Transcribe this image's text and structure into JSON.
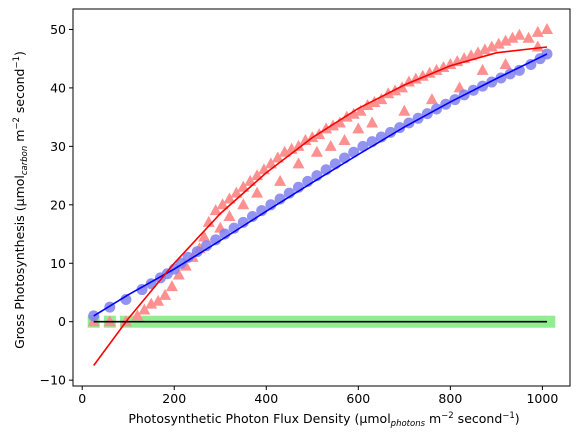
{
  "chart_data": {
    "type": "scatter",
    "title": "",
    "xlabel": {
      "main": "Photosynthetic Photon Flux Density (μmol",
      "sub": "photons",
      "middle": " m",
      "sup1": "−2",
      "rest": " second",
      "sup2": "−1",
      "end": ")"
    },
    "ylabel": {
      "main": "Gross Photosynthesis (μmol",
      "sub": "carbon",
      "middle": " m",
      "sup1": "−2",
      "rest": " second",
      "sup2": "−1",
      "end": ")"
    },
    "xlim": [
      -20,
      1060
    ],
    "ylim": [
      -11,
      53.5
    ],
    "xticks": [
      0,
      200,
      400,
      600,
      800,
      1000
    ],
    "yticks": [
      -10,
      0,
      10,
      20,
      30,
      40,
      50
    ],
    "grid": false,
    "legend": "none",
    "colors": {
      "circles": "#8080f0",
      "triangles": "#ff9090",
      "squares": "#90ee90",
      "blue_fit": "#0000ff",
      "red_fit": "#ff0000",
      "black_fit": "#000000"
    },
    "series": [
      {
        "name": "circles",
        "marker": "circle",
        "x": [
          25,
          60,
          95,
          130,
          150,
          170,
          185,
          200,
          215,
          230,
          250,
          270,
          290,
          310,
          330,
          350,
          370,
          390,
          410,
          430,
          450,
          470,
          490,
          510,
          530,
          550,
          570,
          590,
          610,
          630,
          650,
          670,
          690,
          710,
          730,
          750,
          770,
          790,
          810,
          830,
          850,
          870,
          890,
          910,
          930,
          950,
          975,
          995,
          1010
        ],
        "y": [
          1.0,
          2.5,
          3.8,
          5.5,
          6.5,
          7.5,
          8.2,
          9.0,
          10.0,
          11.0,
          12.0,
          13.0,
          14.0,
          15.0,
          16.0,
          17.0,
          18.0,
          19.0,
          20.0,
          21.0,
          22.0,
          23.0,
          24.0,
          25.0,
          26.0,
          27.0,
          28.0,
          29.0,
          30.0,
          30.8,
          31.6,
          32.4,
          33.2,
          34.0,
          34.8,
          35.6,
          36.4,
          37.2,
          38.0,
          38.8,
          39.6,
          40.3,
          41.0,
          41.7,
          42.4,
          43.0,
          44.0,
          45.0,
          45.8
        ]
      },
      {
        "name": "triangles",
        "marker": "triangle",
        "x": [
          25,
          60,
          95,
          120,
          135,
          150,
          165,
          180,
          195,
          210,
          225,
          240,
          255,
          265,
          275,
          290,
          305,
          320,
          335,
          350,
          365,
          380,
          395,
          410,
          425,
          440,
          455,
          470,
          485,
          500,
          515,
          530,
          545,
          560,
          575,
          590,
          605,
          620,
          635,
          650,
          665,
          680,
          695,
          710,
          725,
          740,
          755,
          770,
          785,
          800,
          815,
          830,
          845,
          860,
          875,
          890,
          905,
          920,
          935,
          950,
          970,
          990,
          1010,
          300,
          320,
          350,
          380,
          430,
          470,
          510,
          540,
          570,
          600,
          630,
          700,
          760,
          820,
          870,
          920,
          990
        ],
        "y": [
          0.0,
          0.0,
          0.0,
          1.0,
          2.0,
          3.0,
          3.5,
          4.5,
          6.0,
          8.0,
          9.5,
          11.0,
          12.5,
          14.5,
          17.0,
          19.0,
          20.0,
          21.0,
          22.0,
          23.0,
          24.0,
          25.0,
          26.0,
          27.0,
          28.0,
          29.0,
          29.5,
          30.0,
          31.0,
          31.5,
          32.0,
          33.0,
          33.5,
          34.0,
          35.0,
          35.5,
          36.0,
          37.0,
          37.5,
          38.0,
          39.0,
          39.5,
          40.0,
          41.0,
          41.5,
          42.0,
          42.5,
          43.0,
          43.5,
          44.0,
          44.5,
          45.0,
          45.5,
          46.0,
          46.5,
          47.0,
          47.5,
          48.0,
          48.5,
          49.0,
          48.5,
          49.5,
          50.0,
          16.0,
          18.0,
          20.0,
          22.0,
          24.0,
          27.0,
          29.0,
          30.0,
          31.0,
          33.0,
          34.0,
          36.0,
          38.0,
          40.0,
          43.0,
          44.0,
          47.0
        ]
      },
      {
        "name": "squares",
        "marker": "square",
        "x": [
          25,
          60,
          95,
          120,
          145,
          170,
          195,
          220,
          245,
          270,
          295,
          320,
          345,
          370,
          395,
          420,
          445,
          470,
          495,
          520,
          545,
          570,
          595,
          620,
          645,
          670,
          695,
          720,
          745,
          770,
          795,
          820,
          845,
          870,
          895,
          920,
          945,
          970,
          995,
          1015
        ],
        "y": [
          0,
          0,
          0,
          0,
          0,
          0,
          0,
          0,
          0,
          0,
          0,
          0,
          0,
          0,
          0,
          0,
          0,
          0,
          0,
          0,
          0,
          0,
          0,
          0,
          0,
          0,
          0,
          0,
          0,
          0,
          0,
          0,
          0,
          0,
          0,
          0,
          0,
          0,
          0,
          0
        ]
      }
    ],
    "fits": [
      {
        "name": "blue_fit",
        "x": [
          25,
          100,
          200,
          300,
          400,
          500,
          600,
          700,
          800,
          900,
          1010
        ],
        "y": [
          1.0,
          4.6,
          9.0,
          13.9,
          18.9,
          23.8,
          28.6,
          33.3,
          37.6,
          41.6,
          45.8
        ]
      },
      {
        "name": "red_fit",
        "x": [
          25,
          100,
          200,
          300,
          400,
          500,
          600,
          700,
          800,
          900,
          1010
        ],
        "y": [
          -7.5,
          0.5,
          10.0,
          18.5,
          25.5,
          31.5,
          36.5,
          40.5,
          43.8,
          46.0,
          47.0
        ]
      },
      {
        "name": "black_fit",
        "x": [
          25,
          1010
        ],
        "y": [
          0,
          0
        ]
      }
    ]
  }
}
